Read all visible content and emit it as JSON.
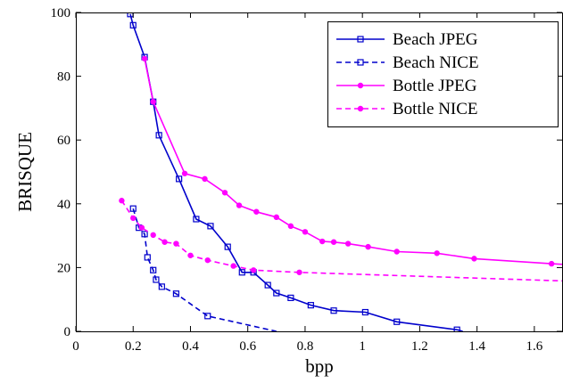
{
  "chart_data": {
    "type": "line",
    "title": "",
    "xlabel": "bpp",
    "ylabel": "BRISQUE",
    "xlim": [
      0,
      1.7
    ],
    "ylim": [
      0,
      100
    ],
    "xticks": [
      "0",
      "0.2",
      "0.4",
      "0.6",
      "0.8",
      "1",
      "1.2",
      "1.4",
      "1.6"
    ],
    "yticks": [
      "0",
      "20",
      "40",
      "60",
      "80",
      "100"
    ],
    "grid": false,
    "legend_position": "top-right",
    "series": [
      {
        "name": "Beach JPEG",
        "color": "#0000cc",
        "dash": "solid",
        "marker": "square",
        "points": [
          [
            0.19,
            99.5
          ],
          [
            0.2,
            96
          ],
          [
            0.24,
            86
          ],
          [
            0.27,
            72
          ],
          [
            0.29,
            61.5
          ],
          [
            0.36,
            47.8
          ],
          [
            0.42,
            35.2
          ],
          [
            0.47,
            33
          ],
          [
            0.53,
            26.5
          ],
          [
            0.58,
            18.5
          ],
          [
            0.62,
            18.5
          ],
          [
            0.67,
            14.5
          ],
          [
            0.7,
            12
          ],
          [
            0.75,
            10.5
          ],
          [
            0.82,
            8.2
          ],
          [
            0.9,
            6.5
          ],
          [
            1.01,
            6
          ],
          [
            1.12,
            3
          ],
          [
            1.33,
            0.5
          ],
          [
            1.35,
            0
          ]
        ]
      },
      {
        "name": "Beach NICE",
        "color": "#0000cc",
        "dash": "dashed",
        "marker": "square",
        "points": [
          [
            0.2,
            38.5
          ],
          [
            0.22,
            32.5
          ],
          [
            0.24,
            30.5
          ],
          [
            0.25,
            23.2
          ],
          [
            0.27,
            19.2
          ],
          [
            0.28,
            16.2
          ],
          [
            0.3,
            14
          ],
          [
            0.35,
            11.8
          ],
          [
            0.46,
            4.8
          ],
          [
            0.7,
            0
          ]
        ]
      },
      {
        "name": "Bottle JPEG",
        "color": "#ff00ff",
        "dash": "solid",
        "marker": "dot",
        "points": [
          [
            0.24,
            85.5
          ],
          [
            0.27,
            72
          ],
          [
            0.38,
            49.5
          ],
          [
            0.45,
            47.8
          ],
          [
            0.52,
            43.5
          ],
          [
            0.57,
            39.5
          ],
          [
            0.63,
            37.5
          ],
          [
            0.7,
            35.8
          ],
          [
            0.75,
            33
          ],
          [
            0.8,
            31.2
          ],
          [
            0.86,
            28.2
          ],
          [
            0.9,
            28
          ],
          [
            0.95,
            27.5
          ],
          [
            1.02,
            26.5
          ],
          [
            1.12,
            25
          ],
          [
            1.26,
            24.5
          ],
          [
            1.39,
            22.8
          ],
          [
            1.66,
            21.2
          ],
          [
            1.7,
            21
          ]
        ]
      },
      {
        "name": "Bottle NICE",
        "color": "#ff00ff",
        "dash": "dashed",
        "marker": "dot",
        "points": [
          [
            0.16,
            41
          ],
          [
            0.2,
            35.5
          ],
          [
            0.23,
            32.5
          ],
          [
            0.27,
            30.2
          ],
          [
            0.31,
            28
          ],
          [
            0.35,
            27.5
          ],
          [
            0.4,
            23.8
          ],
          [
            0.46,
            22.3
          ],
          [
            0.55,
            20.5
          ],
          [
            0.62,
            19.2
          ],
          [
            0.78,
            18.5
          ],
          [
            1.7,
            15.8
          ]
        ]
      }
    ]
  }
}
